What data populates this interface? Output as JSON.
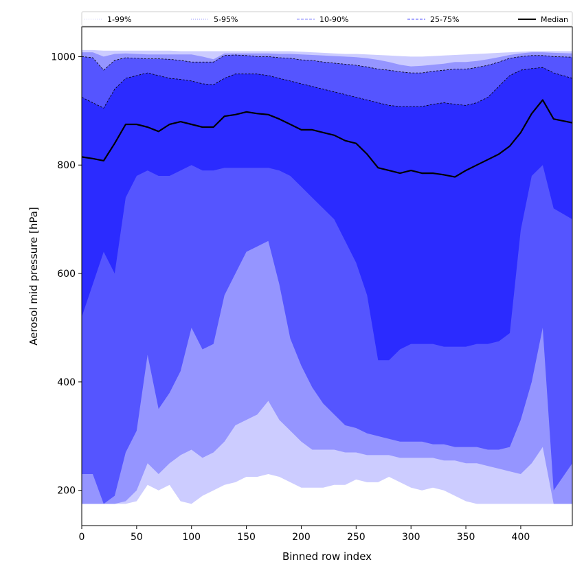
{
  "chart_data": {
    "type": "area",
    "xlabel": "Binned row index",
    "ylabel": "Aerosol mid pressure [hPa]",
    "xlim": [
      0,
      447
    ],
    "ylim": [
      135,
      1055
    ],
    "x_ticks": [
      "0",
      "50",
      "100",
      "150",
      "200",
      "250",
      "300",
      "350",
      "400"
    ],
    "y_ticks": [
      "200",
      "400",
      "600",
      "800",
      "1000"
    ],
    "grid": false,
    "legend_position": "top",
    "legend": [
      {
        "name": "1-99%",
        "style": "dotted",
        "color": "#ccccff"
      },
      {
        "name": "5-95%",
        "style": "dotted",
        "color": "#9999ff"
      },
      {
        "name": "10-90%",
        "style": "dashed",
        "color": "#8080ff"
      },
      {
        "name": "25-75%",
        "style": "dashed",
        "color": "#4d4dff"
      },
      {
        "name": "Median",
        "style": "solid",
        "color": "#000000"
      }
    ],
    "band_colors": {
      "1-99%": "#ccccff",
      "5-95%": "#9595ff",
      "10-90%": "#5555ff",
      "25-75%": "#2b2bff"
    },
    "x": [
      0,
      10,
      20,
      30,
      40,
      50,
      60,
      70,
      80,
      90,
      100,
      110,
      120,
      130,
      140,
      150,
      160,
      170,
      180,
      190,
      200,
      210,
      220,
      230,
      240,
      250,
      260,
      270,
      280,
      290,
      300,
      310,
      320,
      330,
      340,
      350,
      360,
      370,
      380,
      390,
      400,
      410,
      420,
      430,
      447
    ],
    "series": [
      {
        "name": "p1",
        "values": [
          175,
          175,
          175,
          175,
          175,
          180,
          210,
          200,
          210,
          180,
          175,
          190,
          200,
          210,
          215,
          225,
          225,
          230,
          225,
          215,
          205,
          205,
          205,
          210,
          210,
          220,
          215,
          215,
          225,
          215,
          205,
          200,
          205,
          200,
          190,
          180,
          175,
          175,
          175,
          175,
          175,
          175,
          175,
          175,
          175
        ]
      },
      {
        "name": "p5",
        "values": [
          175,
          175,
          175,
          175,
          180,
          200,
          250,
          230,
          250,
          265,
          275,
          260,
          270,
          290,
          320,
          330,
          340,
          365,
          330,
          310,
          290,
          275,
          275,
          275,
          270,
          270,
          265,
          265,
          265,
          260,
          260,
          260,
          260,
          255,
          255,
          250,
          250,
          245,
          240,
          235,
          230,
          250,
          280,
          175,
          175
        ]
      },
      {
        "name": "p10",
        "values": [
          230,
          230,
          175,
          190,
          270,
          310,
          450,
          350,
          380,
          420,
          500,
          460,
          470,
          560,
          600,
          640,
          650,
          660,
          580,
          480,
          430,
          390,
          360,
          340,
          320,
          315,
          305,
          300,
          295,
          290,
          290,
          290,
          285,
          285,
          280,
          280,
          280,
          275,
          275,
          280,
          330,
          400,
          500,
          200,
          250
        ]
      },
      {
        "name": "p25",
        "values": [
          520,
          580,
          640,
          600,
          740,
          780,
          790,
          780,
          780,
          790,
          800,
          790,
          790,
          795,
          795,
          795,
          795,
          795,
          790,
          780,
          760,
          740,
          720,
          700,
          660,
          620,
          560,
          440,
          440,
          460,
          470,
          470,
          470,
          465,
          465,
          465,
          470,
          470,
          475,
          490,
          680,
          780,
          800,
          720,
          700
        ]
      },
      {
        "name": "p75",
        "values": [
          925,
          915,
          905,
          940,
          960,
          965,
          970,
          965,
          960,
          958,
          955,
          950,
          948,
          960,
          968,
          968,
          968,
          965,
          960,
          955,
          950,
          945,
          940,
          935,
          930,
          925,
          920,
          915,
          910,
          908,
          908,
          908,
          912,
          915,
          912,
          910,
          915,
          925,
          945,
          965,
          975,
          978,
          980,
          970,
          960
        ]
      },
      {
        "name": "p90",
        "values": [
          1000,
          998,
          975,
          993,
          998,
          997,
          996,
          996,
          995,
          993,
          990,
          990,
          990,
          1002,
          1003,
          1002,
          1000,
          1000,
          998,
          997,
          994,
          993,
          990,
          988,
          986,
          984,
          981,
          977,
          975,
          972,
          970,
          970,
          973,
          975,
          977,
          977,
          980,
          984,
          990,
          997,
          1000,
          1002,
          1002,
          1000,
          999
        ]
      },
      {
        "name": "p95",
        "values": [
          1008,
          1008,
          1000,
          1005,
          1006,
          1005,
          1004,
          1004,
          1004,
          1004,
          1004,
          1000,
          995,
          1006,
          1006,
          1006,
          1006,
          1006,
          1005,
          1005,
          1004,
          1003,
          1002,
          1001,
          1000,
          999,
          997,
          994,
          990,
          985,
          982,
          983,
          985,
          987,
          990,
          990,
          992,
          995,
          999,
          1003,
          1006,
          1008,
          1008,
          1007,
          1006
        ]
      },
      {
        "name": "p99",
        "values": [
          1012,
          1012,
          1011,
          1011,
          1011,
          1011,
          1011,
          1011,
          1011,
          1010,
          1010,
          1010,
          1010,
          1010,
          1010,
          1010,
          1010,
          1010,
          1010,
          1010,
          1009,
          1008,
          1007,
          1006,
          1005,
          1005,
          1004,
          1003,
          1002,
          1001,
          1000,
          1000,
          1001,
          1002,
          1003,
          1004,
          1005,
          1006,
          1007,
          1008,
          1009,
          1010,
          1010,
          1010,
          1010
        ]
      },
      {
        "name": "Median",
        "values": [
          815,
          812,
          808,
          840,
          875,
          875,
          870,
          862,
          875,
          880,
          875,
          870,
          870,
          890,
          893,
          898,
          895,
          893,
          885,
          875,
          865,
          865,
          860,
          855,
          845,
          840,
          820,
          795,
          790,
          785,
          790,
          785,
          785,
          782,
          778,
          790,
          800,
          810,
          820,
          835,
          860,
          895,
          920,
          885,
          878
        ]
      }
    ]
  }
}
